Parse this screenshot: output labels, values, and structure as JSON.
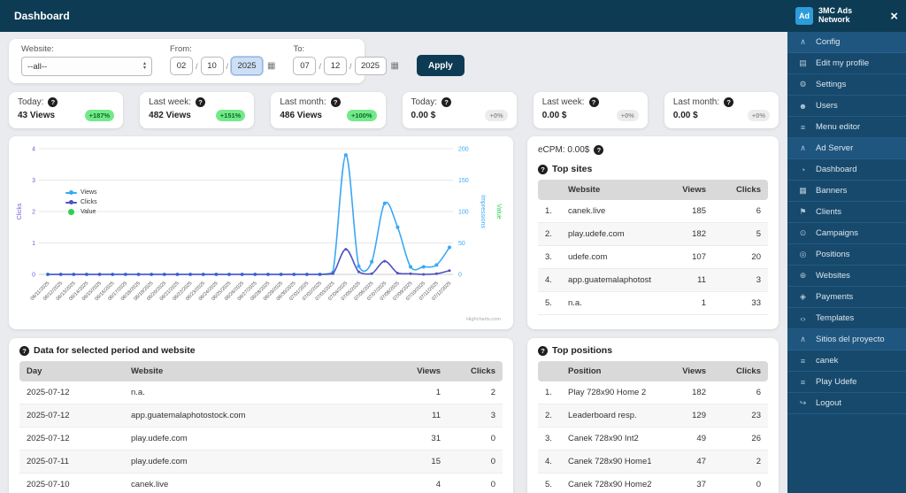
{
  "topbar": {
    "title": "Dashboard"
  },
  "icons": {
    "help": "?",
    "calendar": "▦",
    "close": "×",
    "arrow-up": "▴",
    "arrow-down": "▾",
    "chevron-up": "∧",
    "id-card": "▤",
    "gear": "⚙",
    "users": "☻",
    "menu": "≡",
    "dashboard": "◔",
    "banners": "▦",
    "clients": "⚑",
    "campaigns": "⊙",
    "positions": "◎",
    "websites": "⊕",
    "payments": "◈",
    "templates": "‹›",
    "list": "≡",
    "logout": "↪"
  },
  "filter": {
    "website_label": "Website:",
    "website_value": "--all--",
    "from_label": "From:",
    "from": [
      "02",
      "10",
      "2025"
    ],
    "to_label": "To:",
    "to": [
      "07",
      "12",
      "2025"
    ],
    "apply_label": "Apply"
  },
  "stats": [
    {
      "label": "Today:",
      "value": "43 Views",
      "badge": "+187%",
      "badge_type": "green"
    },
    {
      "label": "Last week:",
      "value": "482 Views",
      "badge": "+151%",
      "badge_type": "green"
    },
    {
      "label": "Last month:",
      "value": "486 Views",
      "badge": "+100%",
      "badge_type": "green"
    },
    {
      "label": "Today:",
      "value": "0.00 $",
      "badge": "+0%",
      "badge_type": "gray"
    },
    {
      "label": "Last week:",
      "value": "0.00 $",
      "badge": "+0%",
      "badge_type": "gray"
    },
    {
      "label": "Last month:",
      "value": "0.00 $",
      "badge": "+0%",
      "badge_type": "gray"
    }
  ],
  "chart_data": {
    "type": "line",
    "x": [
      "06/11/2025",
      "06/12/2025",
      "06/13/2025",
      "06/14/2025",
      "06/15/2025",
      "06/16/2025",
      "06/17/2025",
      "06/18/2025",
      "06/19/2025",
      "06/20/2025",
      "06/21/2025",
      "06/22/2025",
      "06/23/2025",
      "06/24/2025",
      "06/25/2025",
      "06/26/2025",
      "06/27/2025",
      "06/28/2025",
      "06/29/2025",
      "06/30/2025",
      "07/01/2025",
      "07/02/2025",
      "07/03/2025",
      "07/04/2025",
      "07/05/2025",
      "07/06/2025",
      "07/07/2025",
      "07/08/2025",
      "07/09/2025",
      "07/10/2025",
      "07/11/2025",
      "07/12/2025"
    ],
    "series": [
      {
        "name": "Views",
        "color": "#3aa7f5",
        "axis": "impressions",
        "values": [
          0,
          0,
          0,
          0,
          0,
          0,
          0,
          0,
          0,
          0,
          0,
          0,
          0,
          0,
          0,
          0,
          0,
          0,
          0,
          0,
          0,
          0,
          3,
          190,
          13,
          20,
          113,
          75,
          12,
          12,
          15,
          43
        ]
      },
      {
        "name": "Clicks",
        "color": "#4f52c3",
        "axis": "impressions",
        "values": [
          0,
          0,
          0,
          0,
          0,
          0,
          0,
          0,
          0,
          0,
          0,
          0,
          0,
          0,
          0,
          0,
          0,
          0,
          0,
          0,
          0,
          0,
          1,
          40,
          4,
          1,
          21,
          2,
          1,
          0,
          1,
          6
        ]
      },
      {
        "name": "Value",
        "color": "#2bd14e",
        "axis": "value",
        "values": [
          0,
          0,
          0,
          0,
          0,
          0,
          0,
          0,
          0,
          0,
          0,
          0,
          0,
          0,
          0,
          0,
          0,
          0,
          0,
          0,
          0,
          0,
          0,
          0,
          0,
          0,
          0,
          0,
          0,
          0,
          0,
          0
        ]
      }
    ],
    "yaxis_left": {
      "title": "Clicks",
      "color": "#6a5fd8",
      "ticks": [
        0,
        1,
        2,
        3,
        4
      ]
    },
    "yaxis_right": {
      "title": "Impressions",
      "color": "#41a9f5",
      "ticks": [
        0,
        50,
        100,
        150,
        200
      ]
    },
    "yaxis_right2": {
      "title": "Value",
      "color": "#2bd14e"
    },
    "legend_position": "left-middle",
    "grid": true,
    "credit": "Highcharts.com"
  },
  "top_sites": {
    "ecpm": "eCPM: 0.00$",
    "title": "Top sites",
    "columns": [
      "",
      "Website",
      "Views",
      "Clicks"
    ],
    "rows": [
      [
        "1.",
        "canek.live",
        "185",
        "6"
      ],
      [
        "2.",
        "play.udefe.com",
        "182",
        "5"
      ],
      [
        "3.",
        "udefe.com",
        "107",
        "20"
      ],
      [
        "4.",
        "app.guatemalaphotostock.com",
        "11",
        "3"
      ],
      [
        "5.",
        "n.a.",
        "1",
        "33"
      ]
    ]
  },
  "data_table": {
    "title": "Data for selected period and website",
    "columns": [
      "Day",
      "Website",
      "Views",
      "Clicks"
    ],
    "rows": [
      [
        "2025-07-12",
        "n.a.",
        "1",
        "2"
      ],
      [
        "2025-07-12",
        "app.guatemalaphotostock.com",
        "11",
        "3"
      ],
      [
        "2025-07-12",
        "play.udefe.com",
        "31",
        "0"
      ],
      [
        "2025-07-11",
        "play.udefe.com",
        "15",
        "0"
      ],
      [
        "2025-07-10",
        "canek.live",
        "4",
        "0"
      ]
    ]
  },
  "top_positions": {
    "title": "Top positions",
    "columns": [
      "",
      "Position",
      "Views",
      "Clicks"
    ],
    "rows": [
      [
        "1.",
        "Play 728x90 Home 2",
        "182",
        "6"
      ],
      [
        "2.",
        "Leaderboard resp.",
        "129",
        "23"
      ],
      [
        "3.",
        "Canek 728x90 Int2",
        "49",
        "26"
      ],
      [
        "4.",
        "Canek 728x90 Home1",
        "47",
        "2"
      ],
      [
        "5.",
        "Canek 728x90 Home2",
        "37",
        "0"
      ]
    ]
  },
  "sidebar": {
    "logo": "Ad",
    "brand": "3MC Ads Network",
    "groups": [
      {
        "label": "Config",
        "items": [
          {
            "label": "Edit my profile",
            "icon": "id-card"
          },
          {
            "label": "Settings",
            "icon": "gear"
          },
          {
            "label": "Users",
            "icon": "users"
          },
          {
            "label": "Menu editor",
            "icon": "menu"
          }
        ]
      },
      {
        "label": "Ad Server",
        "items": [
          {
            "label": "Dashboard",
            "icon": "dashboard"
          },
          {
            "label": "Banners",
            "icon": "banners"
          },
          {
            "label": "Clients",
            "icon": "clients"
          },
          {
            "label": "Campaigns",
            "icon": "campaigns"
          },
          {
            "label": "Positions",
            "icon": "positions"
          },
          {
            "label": "Websites",
            "icon": "websites"
          },
          {
            "label": "Payments",
            "icon": "payments"
          },
          {
            "label": "Templates",
            "icon": "templates"
          }
        ]
      },
      {
        "label": "Sitios del proyecto",
        "items": [
          {
            "label": "canek",
            "icon": "list"
          },
          {
            "label": "Play Udefe",
            "icon": "list"
          },
          {
            "label": "Logout",
            "icon": "logout"
          }
        ]
      }
    ]
  },
  "colors": {
    "navy": "#0d3b54",
    "sidebar": "#17496d",
    "logo_blue": "#2d9cdb",
    "views": "#3aa7f5",
    "clicks": "#4f52c3",
    "value": "#2bd14e",
    "badge_green": "#72e98a",
    "badge_gray": "#ececec"
  }
}
